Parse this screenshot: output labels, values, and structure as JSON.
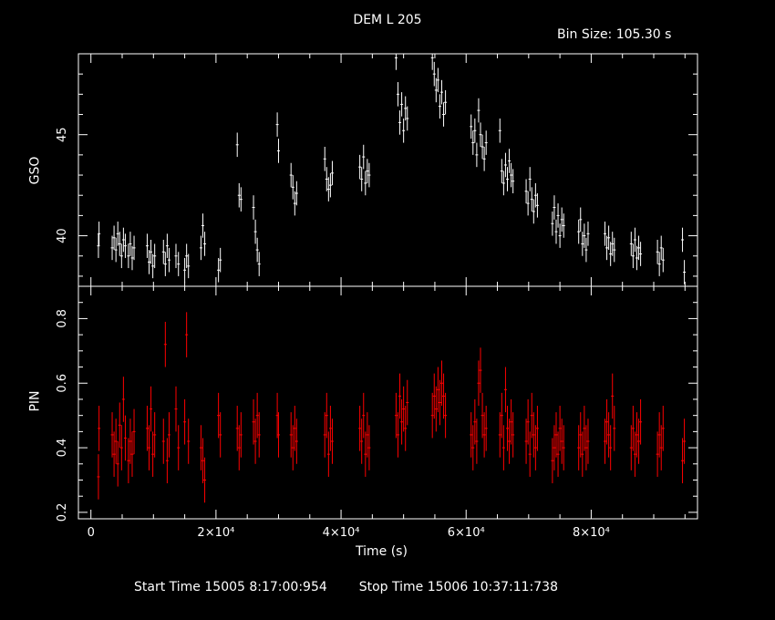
{
  "header": {
    "title": "DEM L 205",
    "bin_size": "Bin Size: 105.30 s"
  },
  "footer": {
    "start_label": "Start Time",
    "start_value": "15005  8:17:00:954",
    "stop_label": "Stop Time",
    "stop_value": "15006 10:37:11:738"
  },
  "colors": {
    "background": "#000000",
    "axes": "#ffffff",
    "gso": "#ffffff",
    "pin": "#ff0000"
  },
  "chart_data": [
    {
      "type": "scatter",
      "name": "GSO",
      "ylabel": "GSO",
      "xlabel": "",
      "xlim": [
        -2000,
        97000
      ],
      "ylim": [
        37.5,
        49
      ],
      "x_ticks": [
        0,
        20000,
        40000,
        60000,
        80000
      ],
      "y_ticks": [
        40,
        45
      ],
      "y_tick_labels": [
        "40",
        "45"
      ],
      "error_bars": true,
      "segments": [
        {
          "x": [
            1200,
            1300
          ],
          "y": [
            39.5,
            40.1
          ]
        },
        {
          "x": [
            3400,
            3700,
            4000,
            4300,
            4600,
            4900,
            5200,
            5500
          ],
          "y": [
            39.4,
            39.9,
            39.3,
            40.1,
            39.6,
            39.0,
            39.8,
            39.5
          ]
        },
        {
          "x": [
            6000,
            6300,
            6600,
            6900
          ],
          "y": [
            39.0,
            39.6,
            38.9,
            39.4
          ]
        },
        {
          "x": [
            9000,
            9300,
            9600,
            9900,
            10200
          ],
          "y": [
            39.5,
            38.7,
            39.2,
            38.5,
            39.0
          ]
        },
        {
          "x": [
            11600,
            11900,
            12200,
            12500
          ],
          "y": [
            39.2,
            38.6,
            39.5,
            38.8
          ]
        },
        {
          "x": [
            13600,
            14000
          ],
          "y": [
            39.0,
            38.6
          ]
        },
        {
          "x": [
            15000,
            15300,
            15600
          ],
          "y": [
            38.3,
            39.0,
            38.5
          ]
        },
        {
          "x": [
            17600,
            17900,
            18200
          ],
          "y": [
            39.4,
            40.5,
            39.6
          ]
        },
        {
          "x": [
            20400,
            20700
          ],
          "y": [
            38.3,
            38.8
          ]
        },
        {
          "x": [
            23400,
            23700,
            24000
          ],
          "y": [
            44.5,
            42.0,
            41.8
          ]
        },
        {
          "x": [
            26000,
            26300,
            26600,
            26900
          ],
          "y": [
            41.4,
            40.2,
            39.3,
            38.6
          ]
        },
        {
          "x": [
            29800,
            30000
          ],
          "y": [
            45.5,
            44.2
          ]
        },
        {
          "x": [
            32000,
            32300,
            32600,
            32900
          ],
          "y": [
            43.0,
            42.4,
            41.6,
            42.1
          ]
        },
        {
          "x": [
            37400,
            37700,
            38000,
            38300,
            38600
          ],
          "y": [
            43.8,
            42.8,
            42.3,
            42.5,
            43.1
          ]
        },
        {
          "x": [
            43000,
            43300,
            43600,
            43900,
            44200,
            44500
          ],
          "y": [
            43.4,
            42.8,
            43.9,
            42.6,
            43.2,
            43.0
          ]
        },
        {
          "x": [
            48800,
            49100,
            49400,
            49700,
            50000,
            50300,
            50600
          ],
          "y": [
            48.8,
            47.0,
            45.6,
            46.5,
            45.2,
            46.3,
            45.8
          ]
        },
        {
          "x": [
            54600,
            54900,
            55200,
            55500,
            55800,
            56100,
            56400,
            56700
          ],
          "y": [
            48.8,
            48.0,
            47.2,
            47.7,
            46.4,
            47.1,
            46.0,
            46.6
          ]
        },
        {
          "x": [
            60800,
            61100,
            61400,
            61700,
            62000,
            62300,
            62600,
            62900,
            63200
          ],
          "y": [
            45.4,
            44.6,
            45.2,
            44.0,
            46.2,
            45.0,
            44.4,
            43.8,
            44.6
          ]
        },
        {
          "x": [
            65400,
            65700,
            66000,
            66300,
            66600,
            66900,
            67200,
            67500
          ],
          "y": [
            45.2,
            43.2,
            42.6,
            43.5,
            42.8,
            43.7,
            43.0,
            42.7
          ]
        },
        {
          "x": [
            69600,
            69900,
            70200,
            70500,
            70800,
            71100,
            71400
          ],
          "y": [
            42.2,
            41.6,
            42.8,
            41.8,
            41.2,
            42.0,
            41.5
          ]
        },
        {
          "x": [
            73800,
            74100,
            74400,
            74700,
            75000,
            75300,
            75600
          ],
          "y": [
            40.6,
            41.4,
            40.2,
            41.0,
            40.0,
            40.8,
            40.5
          ]
        },
        {
          "x": [
            78000,
            78300,
            78600,
            78900,
            79200,
            79500
          ],
          "y": [
            40.2,
            40.8,
            39.6,
            40.0,
            39.3,
            40.1
          ]
        },
        {
          "x": [
            82200,
            82500,
            82800,
            83100,
            83400,
            83700
          ],
          "y": [
            40.1,
            39.4,
            39.9,
            39.1,
            39.6,
            39.3
          ]
        },
        {
          "x": [
            86400,
            86700,
            87000,
            87300,
            87600,
            87900
          ],
          "y": [
            39.6,
            39.0,
            39.8,
            38.9,
            39.4,
            39.1
          ]
        },
        {
          "x": [
            90600,
            90900,
            91200,
            91500
          ],
          "y": [
            39.2,
            38.6,
            39.4,
            38.8
          ]
        },
        {
          "x": [
            94600,
            94900
          ],
          "y": [
            39.8,
            38.2
          ]
        }
      ]
    },
    {
      "type": "scatter",
      "name": "PIN",
      "ylabel": "PIN",
      "xlabel": "Time (s)",
      "xlim": [
        -2000,
        97000
      ],
      "ylim": [
        0.18,
        0.9
      ],
      "x_ticks": [
        0,
        20000,
        40000,
        60000,
        80000
      ],
      "x_tick_labels": [
        "0",
        "2×10⁴",
        "4×10⁴",
        "6×10⁴",
        "8×10⁴"
      ],
      "y_ticks": [
        0.2,
        0.4,
        0.6,
        0.8
      ],
      "y_tick_labels": [
        "0.2",
        "0.4",
        "0.6",
        "0.8"
      ],
      "error_bars": true,
      "segments": [
        {
          "x": [
            1200,
            1300
          ],
          "y": [
            0.31,
            0.46
          ]
        },
        {
          "x": [
            3400,
            3700,
            4000,
            4300,
            4600,
            4900,
            5200,
            5500
          ],
          "y": [
            0.44,
            0.38,
            0.42,
            0.35,
            0.47,
            0.4,
            0.55,
            0.43
          ]
        },
        {
          "x": [
            6000,
            6300,
            6600,
            6900
          ],
          "y": [
            0.36,
            0.42,
            0.38,
            0.45
          ]
        },
        {
          "x": [
            9000,
            9300,
            9600,
            9900,
            10200
          ],
          "y": [
            0.46,
            0.4,
            0.52,
            0.38,
            0.44
          ]
        },
        {
          "x": [
            11600,
            11900,
            12200,
            12500
          ],
          "y": [
            0.42,
            0.72,
            0.36,
            0.44
          ]
        },
        {
          "x": [
            13600,
            14000
          ],
          "y": [
            0.52,
            0.4
          ]
        },
        {
          "x": [
            15000,
            15300,
            15600
          ],
          "y": [
            0.48,
            0.75,
            0.42
          ]
        },
        {
          "x": [
            17600,
            17900,
            18200
          ],
          "y": [
            0.4,
            0.36,
            0.3
          ]
        },
        {
          "x": [
            20400,
            20700
          ],
          "y": [
            0.5,
            0.44
          ]
        },
        {
          "x": [
            23400,
            23700,
            24000
          ],
          "y": [
            0.46,
            0.4,
            0.44
          ]
        },
        {
          "x": [
            26000,
            26300,
            26600,
            26900
          ],
          "y": [
            0.48,
            0.42,
            0.5,
            0.44
          ]
        },
        {
          "x": [
            29800,
            30000
          ],
          "y": [
            0.5,
            0.44
          ]
        },
        {
          "x": [
            32000,
            32300,
            32600,
            32900
          ],
          "y": [
            0.44,
            0.4,
            0.46,
            0.42
          ]
        },
        {
          "x": [
            37400,
            37700,
            38000,
            38300,
            38600
          ],
          "y": [
            0.44,
            0.5,
            0.38,
            0.46,
            0.42
          ]
        },
        {
          "x": [
            43000,
            43300,
            43600,
            43900,
            44200,
            44500
          ],
          "y": [
            0.46,
            0.42,
            0.5,
            0.38,
            0.44,
            0.4
          ]
        },
        {
          "x": [
            48800,
            49100,
            49400,
            49700,
            50000,
            50300,
            50600
          ],
          "y": [
            0.5,
            0.44,
            0.56,
            0.48,
            0.52,
            0.46,
            0.54
          ]
        },
        {
          "x": [
            54600,
            54900,
            55200,
            55500,
            55800,
            56100,
            56400,
            56700
          ],
          "y": [
            0.5,
            0.56,
            0.52,
            0.58,
            0.54,
            0.6,
            0.56,
            0.5
          ]
        },
        {
          "x": [
            60800,
            61100,
            61400,
            61700,
            62000,
            62300,
            62600,
            62900,
            63200
          ],
          "y": [
            0.44,
            0.4,
            0.48,
            0.42,
            0.6,
            0.64,
            0.5,
            0.44,
            0.46
          ]
        },
        {
          "x": [
            65400,
            65700,
            66000,
            66300,
            66600,
            66900,
            67200,
            67500
          ],
          "y": [
            0.44,
            0.5,
            0.4,
            0.58,
            0.46,
            0.42,
            0.48,
            0.44
          ]
        },
        {
          "x": [
            69600,
            69900,
            70200,
            70500,
            70800,
            71100,
            71400
          ],
          "y": [
            0.42,
            0.48,
            0.38,
            0.5,
            0.44,
            0.4,
            0.46
          ]
        },
        {
          "x": [
            73800,
            74100,
            74400,
            74700,
            75000,
            75300,
            75600
          ],
          "y": [
            0.36,
            0.4,
            0.44,
            0.38,
            0.46,
            0.42,
            0.4
          ]
        },
        {
          "x": [
            78000,
            78300,
            78600,
            78900,
            79200,
            79500
          ],
          "y": [
            0.4,
            0.44,
            0.38,
            0.46,
            0.4,
            0.42
          ]
        },
        {
          "x": [
            82200,
            82500,
            82800,
            83100,
            83400,
            83700
          ],
          "y": [
            0.42,
            0.48,
            0.44,
            0.4,
            0.56,
            0.46
          ]
        },
        {
          "x": [
            86400,
            86700,
            87000,
            87300,
            87600,
            87900
          ],
          "y": [
            0.4,
            0.46,
            0.38,
            0.44,
            0.42,
            0.48
          ]
        },
        {
          "x": [
            90600,
            90900,
            91200,
            91500
          ],
          "y": [
            0.38,
            0.44,
            0.4,
            0.46
          ]
        },
        {
          "x": [
            94600,
            94900
          ],
          "y": [
            0.36,
            0.42
          ]
        }
      ]
    }
  ]
}
